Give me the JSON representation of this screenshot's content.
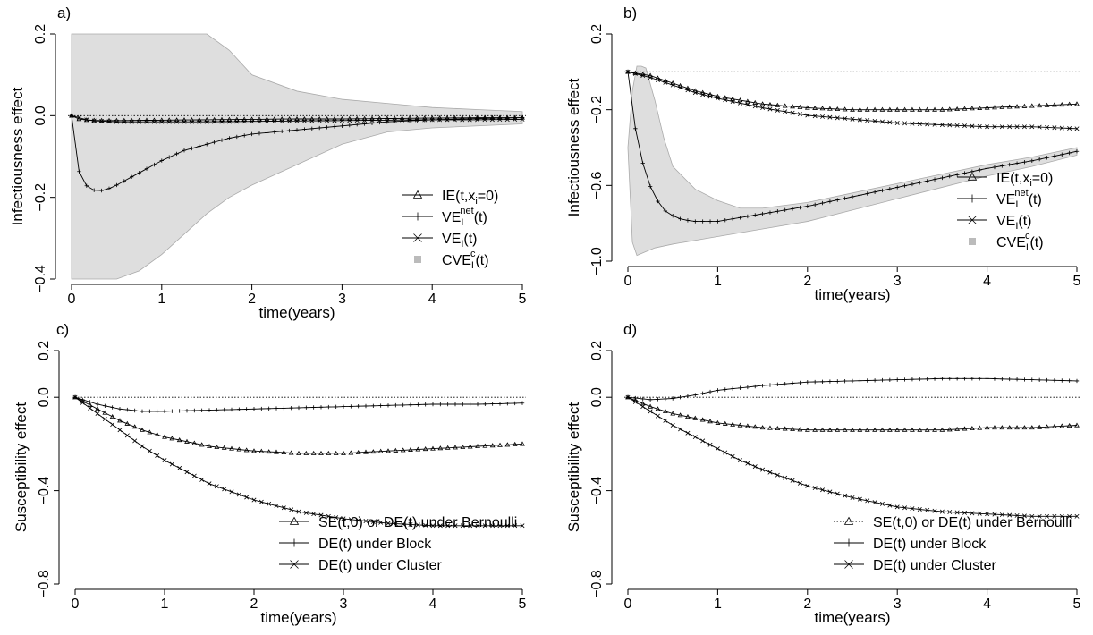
{
  "chart_data": [
    {
      "panel": "a)",
      "type": "line",
      "ylabel": "Infectiousness effect",
      "xlabel": "time(years)",
      "xlim": [
        0,
        5
      ],
      "ylim": [
        -0.4,
        0.2
      ],
      "xticks": [
        "0",
        "1",
        "2",
        "3",
        "4",
        "5"
      ],
      "yticks": [
        {
          "v": -0.4,
          "l": "−0.4"
        },
        {
          "v": -0.2,
          "l": "−0.2"
        },
        {
          "v": 0.0,
          "l": "0.0"
        },
        {
          "v": 0.2,
          "l": "0.2"
        }
      ],
      "reference_line": 0,
      "band": {
        "x": [
          0,
          0.05,
          0.1,
          0.2,
          0.3,
          0.5,
          0.75,
          1.0,
          1.25,
          1.5,
          1.75,
          2.0,
          2.5,
          3.0,
          3.5,
          4.0,
          4.5,
          5.0
        ],
        "upper": [
          0.2,
          0.2,
          0.2,
          0.2,
          0.2,
          0.2,
          0.2,
          0.2,
          0.2,
          0.2,
          0.16,
          0.1,
          0.06,
          0.04,
          0.03,
          0.02,
          0.015,
          0.01
        ],
        "lower": [
          -0.4,
          -0.4,
          -0.4,
          -0.4,
          -0.4,
          -0.4,
          -0.38,
          -0.34,
          -0.29,
          -0.24,
          -0.2,
          -0.17,
          -0.12,
          -0.07,
          -0.04,
          -0.03,
          -0.025,
          -0.02
        ]
      },
      "legend": {
        "position": "bottom-right",
        "entries": [
          {
            "html": "IE(t,x<tspan font-size=\"11\" dy=\"4\">i</tspan><tspan dy=\"-4\">=0)</tspan>",
            "mark": "triangle",
            "line": "solid"
          },
          {
            "html": "VE<tspan font-size=\"11\" dy=\"4\">I</tspan><tspan font-size=\"11\" dx=\"-4\" dy=\"-13\">net</tspan><tspan dy=\"9\">(t)</tspan>",
            "mark": "plus",
            "line": "solid"
          },
          {
            "html": "VE<tspan font-size=\"11\" dy=\"4\">I</tspan><tspan dy=\"-4\">(t)</tspan>",
            "mark": "cross",
            "line": "solid"
          },
          {
            "html": "CVE<tspan font-size=\"11\" dy=\"4\">I</tspan><tspan font-size=\"11\" dx=\"-4\" dy=\"-13\">c</tspan><tspan dy=\"9\">(t)</tspan>",
            "mark": "square",
            "line": "none"
          }
        ]
      },
      "series": [
        {
          "marker": "triangle",
          "x": [
            0,
            0.1,
            0.3,
            0.6,
            1.0,
            1.5,
            2.0,
            2.5,
            3.0,
            3.5,
            4.0,
            4.5,
            5.0
          ],
          "y": [
            0,
            -0.01,
            -0.012,
            -0.012,
            -0.011,
            -0.01,
            -0.009,
            -0.008,
            -0.008,
            -0.007,
            -0.006,
            -0.005,
            -0.005
          ]
        },
        {
          "marker": "plus",
          "x": [
            0,
            0.05,
            0.1,
            0.2,
            0.3,
            0.4,
            0.5,
            0.75,
            1.0,
            1.25,
            1.5,
            1.75,
            2.0,
            2.5,
            3.0,
            3.5,
            4.0,
            4.5,
            5.0
          ],
          "y": [
            0,
            -0.1,
            -0.155,
            -0.18,
            -0.185,
            -0.18,
            -0.17,
            -0.14,
            -0.11,
            -0.085,
            -0.07,
            -0.055,
            -0.045,
            -0.035,
            -0.025,
            -0.015,
            -0.01,
            -0.007,
            -0.005
          ]
        },
        {
          "marker": "cross",
          "x": [
            0,
            0.2,
            0.5,
            1.0,
            1.5,
            2.0,
            2.5,
            3.0,
            3.5,
            4.0,
            4.5,
            5.0
          ],
          "y": [
            0,
            -0.012,
            -0.015,
            -0.015,
            -0.015,
            -0.014,
            -0.013,
            -0.012,
            -0.011,
            -0.01,
            -0.01,
            -0.009
          ]
        }
      ]
    },
    {
      "panel": "b)",
      "type": "line",
      "ylabel": "Infectiousness effect",
      "xlabel": "time(years)",
      "xlim": [
        0,
        5
      ],
      "ylim": [
        -1.0,
        0.2
      ],
      "xticks": [
        "0",
        "1",
        "2",
        "3",
        "4",
        "5"
      ],
      "yticks": [
        {
          "v": -1.0,
          "l": "−1.0"
        },
        {
          "v": -0.6,
          "l": "−0.6"
        },
        {
          "v": -0.2,
          "l": "−0.2"
        },
        {
          "v": 0.2,
          "l": "0.2"
        }
      ],
      "reference_line": 0,
      "band": {
        "x": [
          0,
          0.05,
          0.1,
          0.15,
          0.2,
          0.3,
          0.4,
          0.5,
          0.75,
          1.0,
          1.25,
          1.5,
          2.0,
          2.5,
          3.0,
          3.5,
          4.0,
          4.5,
          5.0
        ],
        "upper": [
          -0.4,
          -0.1,
          0.03,
          0.03,
          0.02,
          -0.15,
          -0.35,
          -0.5,
          -0.62,
          -0.68,
          -0.72,
          -0.72,
          -0.69,
          -0.64,
          -0.59,
          -0.54,
          -0.49,
          -0.45,
          -0.4
        ],
        "lower": [
          -0.4,
          -0.9,
          -0.97,
          -0.96,
          -0.95,
          -0.93,
          -0.92,
          -0.91,
          -0.89,
          -0.87,
          -0.85,
          -0.83,
          -0.79,
          -0.73,
          -0.67,
          -0.61,
          -0.55,
          -0.5,
          -0.44
        ]
      },
      "legend": {
        "position": "bottom-right",
        "entries": [
          {
            "html": "IE(t,x<tspan font-size=\"11\" dy=\"4\">i</tspan><tspan dy=\"-4\">=0)</tspan>",
            "mark": "triangle",
            "line": "solid"
          },
          {
            "html": "VE<tspan font-size=\"11\" dy=\"4\">I</tspan><tspan font-size=\"11\" dx=\"-4\" dy=\"-13\">net</tspan><tspan dy=\"9\">(t)</tspan>",
            "mark": "plus",
            "line": "solid"
          },
          {
            "html": "VE<tspan font-size=\"11\" dy=\"4\">I</tspan><tspan dy=\"-4\">(t)</tspan>",
            "mark": "cross",
            "line": "solid"
          },
          {
            "html": "CVE<tspan font-size=\"11\" dy=\"4\">I</tspan><tspan font-size=\"11\" dx=\"-4\" dy=\"-13\">c</tspan><tspan dy=\"9\">(t)</tspan>",
            "mark": "square",
            "line": "none"
          }
        ]
      },
      "series": [
        {
          "marker": "triangle",
          "x": [
            0,
            0.25,
            0.5,
            0.75,
            1.0,
            1.5,
            2.0,
            2.5,
            3.0,
            3.5,
            4.0,
            4.5,
            5.0
          ],
          "y": [
            0,
            -0.02,
            -0.06,
            -0.1,
            -0.13,
            -0.17,
            -0.19,
            -0.2,
            -0.2,
            -0.2,
            -0.19,
            -0.18,
            -0.17
          ]
        },
        {
          "marker": "plus",
          "x": [
            0,
            0.05,
            0.1,
            0.2,
            0.3,
            0.4,
            0.5,
            0.6,
            0.75,
            1.0,
            1.25,
            1.5,
            2.0,
            2.5,
            3.0,
            3.5,
            4.0,
            4.5,
            5.0
          ],
          "y": [
            0,
            -0.2,
            -0.35,
            -0.55,
            -0.66,
            -0.73,
            -0.76,
            -0.78,
            -0.79,
            -0.79,
            -0.77,
            -0.75,
            -0.71,
            -0.66,
            -0.61,
            -0.56,
            -0.51,
            -0.47,
            -0.42
          ]
        },
        {
          "marker": "cross",
          "x": [
            0,
            0.25,
            0.5,
            0.75,
            1.0,
            1.5,
            2.0,
            2.5,
            3.0,
            3.5,
            4.0,
            4.5,
            5.0
          ],
          "y": [
            0,
            -0.03,
            -0.07,
            -0.11,
            -0.14,
            -0.19,
            -0.23,
            -0.25,
            -0.27,
            -0.28,
            -0.29,
            -0.29,
            -0.3
          ]
        }
      ]
    },
    {
      "panel": "c)",
      "type": "line",
      "ylabel": "Susceptibility effect",
      "xlabel": "time(years)",
      "xlim": [
        0,
        5
      ],
      "ylim": [
        -0.8,
        0.2
      ],
      "xticks": [
        "0",
        "1",
        "2",
        "3",
        "4",
        "5"
      ],
      "yticks": [
        {
          "v": -0.8,
          "l": "−0.8"
        },
        {
          "v": -0.4,
          "l": "−0.4"
        },
        {
          "v": 0.0,
          "l": "0.0"
        },
        {
          "v": 0.2,
          "l": "0.2"
        }
      ],
      "reference_line": 0,
      "legend": {
        "position": "bottom-right",
        "entries": [
          {
            "html": "SE(t,0) or DE(t) under Bernoulli",
            "mark": "triangle",
            "line": "solid"
          },
          {
            "html": "DE(t) under Block",
            "mark": "plus",
            "line": "solid"
          },
          {
            "html": "DE(t) under Cluster",
            "mark": "cross",
            "line": "solid"
          }
        ]
      },
      "series": [
        {
          "marker": "triangle",
          "x": [
            0,
            0.25,
            0.5,
            0.75,
            1.0,
            1.25,
            1.5,
            2.0,
            2.5,
            3.0,
            3.5,
            4.0,
            4.5,
            5.0
          ],
          "y": [
            0,
            -0.05,
            -0.1,
            -0.14,
            -0.17,
            -0.19,
            -0.21,
            -0.23,
            -0.24,
            -0.24,
            -0.23,
            -0.22,
            -0.21,
            -0.2
          ]
        },
        {
          "marker": "plus",
          "x": [
            0,
            0.25,
            0.5,
            0.75,
            1.0,
            1.5,
            2.0,
            2.5,
            3.0,
            3.5,
            4.0,
            4.5,
            5.0
          ],
          "y": [
            0,
            -0.03,
            -0.05,
            -0.06,
            -0.06,
            -0.055,
            -0.05,
            -0.045,
            -0.04,
            -0.035,
            -0.03,
            -0.03,
            -0.025
          ]
        },
        {
          "marker": "cross",
          "x": [
            0,
            0.25,
            0.5,
            0.75,
            1.0,
            1.25,
            1.5,
            2.0,
            2.5,
            3.0,
            3.5,
            4.0,
            4.5,
            5.0
          ],
          "y": [
            0,
            -0.07,
            -0.14,
            -0.21,
            -0.27,
            -0.32,
            -0.37,
            -0.44,
            -0.49,
            -0.52,
            -0.54,
            -0.55,
            -0.55,
            -0.55
          ]
        }
      ]
    },
    {
      "panel": "d)",
      "type": "line",
      "ylabel": "Susceptibility effect",
      "xlabel": "time(years)",
      "xlim": [
        0,
        5
      ],
      "ylim": [
        -0.8,
        0.2
      ],
      "xticks": [
        "0",
        "1",
        "2",
        "3",
        "4",
        "5"
      ],
      "yticks": [
        {
          "v": -0.8,
          "l": "−0.8"
        },
        {
          "v": -0.4,
          "l": "−0.4"
        },
        {
          "v": 0.0,
          "l": "0.0"
        },
        {
          "v": 0.2,
          "l": "0.2"
        }
      ],
      "reference_line": 0,
      "legend": {
        "position": "bottom-right",
        "entries": [
          {
            "html": "SE(t,0) or DE(t) under Bernoulli",
            "mark": "triangle",
            "line": "dotted"
          },
          {
            "html": "DE(t) under Block",
            "mark": "plus",
            "line": "solid"
          },
          {
            "html": "DE(t) under Cluster",
            "mark": "cross",
            "line": "solid"
          }
        ]
      },
      "series": [
        {
          "marker": "triangle",
          "x": [
            0,
            0.25,
            0.5,
            0.75,
            1.0,
            1.5,
            2.0,
            2.5,
            3.0,
            3.5,
            4.0,
            4.5,
            5.0
          ],
          "y": [
            0,
            -0.04,
            -0.07,
            -0.09,
            -0.11,
            -0.13,
            -0.14,
            -0.14,
            -0.14,
            -0.14,
            -0.13,
            -0.13,
            -0.12
          ]
        },
        {
          "marker": "plus",
          "x": [
            0,
            0.25,
            0.5,
            0.75,
            1.0,
            1.5,
            2.0,
            2.5,
            3.0,
            3.5,
            4.0,
            4.5,
            5.0
          ],
          "y": [
            0,
            -0.01,
            -0.005,
            0.01,
            0.03,
            0.05,
            0.065,
            0.07,
            0.075,
            0.08,
            0.08,
            0.075,
            0.07
          ]
        },
        {
          "marker": "cross",
          "x": [
            0,
            0.25,
            0.5,
            0.75,
            1.0,
            1.25,
            1.5,
            2.0,
            2.5,
            3.0,
            3.5,
            4.0,
            4.5,
            5.0
          ],
          "y": [
            0,
            -0.06,
            -0.12,
            -0.17,
            -0.22,
            -0.27,
            -0.31,
            -0.38,
            -0.43,
            -0.47,
            -0.49,
            -0.5,
            -0.51,
            -0.51
          ]
        }
      ]
    }
  ]
}
